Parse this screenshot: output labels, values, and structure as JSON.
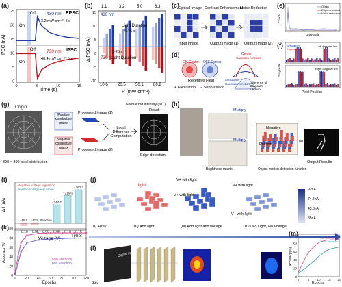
{
  "panels": {
    "a": {
      "label": "(a)",
      "ylabel": "PSC (nA)",
      "xlabel": "Time (s)",
      "yticks": [
        "25",
        "20",
        "15",
        "10",
        "5",
        "0"
      ],
      "xticks": [
        "0",
        "5",
        "10",
        "15"
      ],
      "epsc": {
        "name": "EPSC",
        "off": "Off",
        "on": "On",
        "wavelength": "430 nm",
        "cond": "3.2 mW cm⁻², 5 s"
      },
      "ipsc": {
        "name": "IPSC",
        "off": "Off",
        "on": "On",
        "wavelength": "730 nm",
        "cond": "40.4 mW cm⁻², 5 s"
      }
    },
    "b": {
      "label": "(b)",
      "ylabel": "Δ PSC (nA)",
      "xlabel": "P (mW cm⁻²)",
      "xticks_top": [
        "1.1",
        "3.2",
        "5.0",
        "8.3"
      ],
      "xticks_bottom": [
        "10.6",
        "20.5",
        "50.1",
        "80.2"
      ],
      "yticks": [
        "15",
        "10",
        "5",
        "0",
        "-5",
        "-10"
      ],
      "wl_blue": "430 nm",
      "wl_red": "730 nm",
      "dur_top": "Light Duration",
      "dur_top_range": "5-25 s",
      "dur_bottom": "Light Duration",
      "dur_bottom_range": "5-25 s"
    },
    "c": {
      "label": "(c)",
      "titles": [
        "Optical Image",
        "Contrast Enhancement",
        "Noise Reduction"
      ],
      "captions": [
        "Input Image",
        "Output Image (1)",
        "Output Image (2)"
      ]
    },
    "d": {
      "label": "(d)",
      "title": "Receptive Field",
      "on": "ON Center",
      "off": "OFF Center",
      "fac": "+ Facilitation",
      "sup": "− Suppression",
      "center": "Center",
      "surround": "Surrounds",
      "gauss1": "Gaussian function",
      "gauss2": "Gaussian function",
      "dog": "Difference of Gaussian function"
    },
    "e": {
      "label": "(e)",
      "ylabel": "Counts",
      "xlabel": "Grayscale",
      "legend": [
        "Origin",
        "Edge detection",
        "Noise reduction"
      ]
    },
    "f": {
      "label": "(f)",
      "ylabel": "Grayscale",
      "xlabel": "Pixel Position",
      "legend": [
        "Simulation",
        "Experiment"
      ],
      "left": "Left diagonal line",
      "right": "Right diagonal line",
      "xticks": [
        "0",
        "5",
        "10",
        "15",
        "20",
        "25",
        "30"
      ]
    },
    "g": {
      "label": "(g)",
      "origin": "Origin",
      "pix": "300 × 300 pixel distribution",
      "pos": "Positive conductive matrix",
      "neg": "Negative conductive matrix",
      "proc1": "Processed image (1)",
      "proc2": "Processed image (2)",
      "local": "Local Difference Computation",
      "norm": "Normalized intensity (a.u.)",
      "result": "Result",
      "edge": "Edge detection"
    },
    "h": {
      "label": "(h)",
      "multiply1": "Multiply",
      "multiply2": "Multiply",
      "positive": "Positive",
      "negative": "Negative",
      "brightness": "Brightness matrix",
      "odf": "Object motion detection function",
      "output": "Output Results"
    },
    "i": {
      "label": "(i)",
      "ylabel": "Δ I (nA)",
      "xlabel": "Voltage (V)",
      "legend": [
        "Negative voltage regulation",
        "Positive voltage regulation"
      ],
      "xticks": [
        "-0.10",
        "-0.05",
        "0.00",
        "0.05",
        "0.10",
        "0.15"
      ],
      "yticks": [
        "300",
        "250",
        "200",
        "150",
        "100",
        "50",
        "0"
      ],
      "annotations": [
        "-16.8",
        "-11.9",
        "Baseline",
        "+144.7",
        "+216.6",
        "+262.3"
      ]
    },
    "j": {
      "label": "(j)",
      "light": "light",
      "v_with_light": "V+ with light",
      "v2_with_light": "V+ with light",
      "v3_with_light": "V+ with light",
      "vminus": "V− with light",
      "steps": [
        "(I) Array",
        "(II) Add light",
        "(III) Add light and voltage",
        "(IV) No Light, No Voltage"
      ],
      "time": "Time:",
      "colorbar": [
        "92nA",
        "74.4nA",
        "45.3nA",
        "35nA"
      ]
    },
    "k": {
      "label": "(k)",
      "ylabel": "Accuracy(%)",
      "xlabel": "Epochs",
      "legend": [
        "with attention",
        "non attention"
      ],
      "xticks": [
        "0",
        "20",
        "40",
        "60",
        "80",
        "100",
        "120"
      ],
      "yticks": [
        "100",
        "80",
        "60",
        "40",
        "20",
        "0"
      ]
    },
    "l": {
      "label": "(l)",
      "digit": "Digital image",
      "step": "Step"
    },
    "m": {
      "label": "(m)",
      "ylabel": "Accuracy(%)",
      "xlabel": "Epochs",
      "legend": [
        "Our Method",
        "None Attention"
      ],
      "xticks": [
        "0",
        "5",
        "10",
        "15",
        "20"
      ],
      "yticks": [
        "100",
        "80",
        "60",
        "40",
        "20",
        "0"
      ]
    }
  },
  "chart_data": [
    {
      "type": "line",
      "panel": "a",
      "title": "",
      "xlabel": "Time (s)",
      "ylabel": "PSC (nA)",
      "xlim": [
        0,
        15
      ],
      "ylim": [
        0,
        25
      ],
      "series": [
        {
          "name": "EPSC",
          "x": [
            0,
            4.5,
            5,
            6,
            8,
            10,
            12,
            15
          ],
          "y": [
            12.0,
            12.0,
            22.5,
            18.5,
            15.5,
            14.3,
            13.5,
            13.0
          ]
        },
        {
          "name": "IPSC",
          "x": [
            0,
            4.5,
            5,
            6,
            8,
            10,
            12,
            15
          ],
          "y": [
            8.0,
            8.0,
            1.0,
            3.5,
            5.0,
            5.8,
            6.3,
            6.8
          ]
        }
      ]
    },
    {
      "type": "bar",
      "panel": "k",
      "title": "",
      "xlabel": "Epochs",
      "ylabel": "Accuracy(%)",
      "ylim": [
        0,
        100
      ],
      "series": [
        {
          "name": "with attention",
          "x": [
            0,
            5,
            10,
            20,
            40,
            60,
            80,
            100,
            120
          ],
          "y": [
            5,
            40,
            70,
            86,
            90,
            91,
            91,
            91,
            91
          ]
        },
        {
          "name": "non attention",
          "x": [
            0,
            5,
            10,
            20,
            40,
            60,
            80,
            100,
            120
          ],
          "y": [
            3,
            25,
            50,
            70,
            76,
            78,
            79,
            80,
            80
          ]
        }
      ]
    },
    {
      "type": "bar",
      "panel": "i",
      "title": "",
      "xlabel": "Voltage (V)",
      "ylabel": "Δ I (nA)",
      "categories": [
        "-0.10",
        "-0.05",
        "0.00",
        "0.05",
        "0.10",
        "0.15"
      ],
      "series": [
        {
          "name": "Negative voltage regulation",
          "values": [
            -16.8,
            -11.9,
            0,
            null,
            null,
            null
          ]
        },
        {
          "name": "Positive voltage regulation",
          "values": [
            null,
            null,
            0,
            144.7,
            216.6,
            262.3
          ]
        }
      ]
    },
    {
      "type": "line",
      "panel": "m",
      "title": "",
      "xlabel": "Epochs",
      "ylabel": "Accuracy(%)",
      "xlim": [
        0,
        20
      ],
      "ylim": [
        0,
        100
      ],
      "series": [
        {
          "name": "Our Method",
          "x": [
            0,
            2,
            4,
            6,
            8,
            10,
            12,
            14,
            16,
            18,
            20
          ],
          "y": [
            10,
            30,
            50,
            63,
            72,
            80,
            84,
            86,
            87,
            87,
            88
          ]
        },
        {
          "name": "None Attention",
          "x": [
            0,
            2,
            4,
            6,
            8,
            10,
            12,
            14,
            16,
            18,
            20
          ],
          "y": [
            8,
            15,
            22,
            30,
            38,
            48,
            55,
            62,
            66,
            68,
            70
          ]
        }
      ]
    }
  ]
}
